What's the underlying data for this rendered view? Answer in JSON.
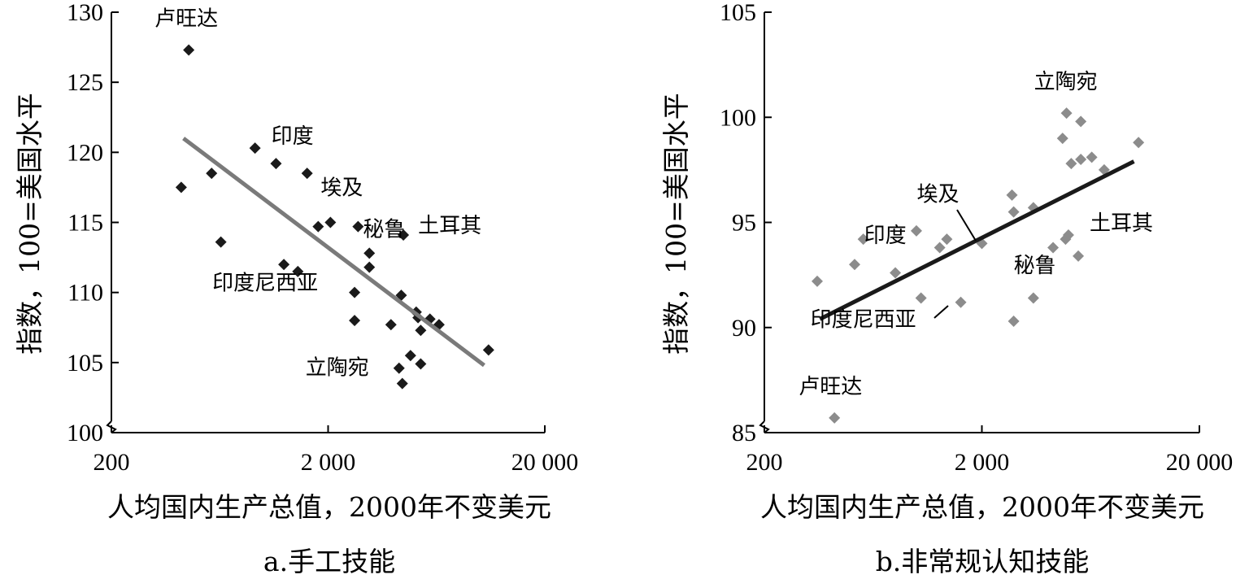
{
  "chart_data": [
    {
      "type": "scatter",
      "caption": "a.手工技能",
      "xlabel": "人均国内生产总值，2000年不变美元",
      "ylabel": "指数，100=美国水平",
      "x_scale": "log",
      "xlim": [
        200,
        20000
      ],
      "ylim": [
        100,
        130
      ],
      "x_ticks": [
        200,
        2000,
        20000
      ],
      "x_tick_labels": [
        "200",
        "2 000",
        "20 000"
      ],
      "y_ticks": [
        100,
        105,
        110,
        115,
        120,
        125,
        130
      ],
      "y_tick_labels": [
        "100",
        "105",
        "110",
        "115",
        "120",
        "125",
        "130"
      ],
      "axis_break": true,
      "point_color": "#1a1a1a",
      "trendline_color": "#7a7a7a",
      "points": [
        {
          "x": 455,
          "y": 127.3
        },
        {
          "x": 420,
          "y": 117.5
        },
        {
          "x": 580,
          "y": 118.5
        },
        {
          "x": 640,
          "y": 113.6
        },
        {
          "x": 920,
          "y": 120.3
        },
        {
          "x": 1150,
          "y": 119.2
        },
        {
          "x": 1250,
          "y": 112.0
        },
        {
          "x": 1450,
          "y": 111.5
        },
        {
          "x": 1600,
          "y": 118.5
        },
        {
          "x": 1800,
          "y": 114.7
        },
        {
          "x": 2050,
          "y": 115.0
        },
        {
          "x": 2650,
          "y": 110.0
        },
        {
          "x": 2650,
          "y": 108.0
        },
        {
          "x": 2750,
          "y": 114.7
        },
        {
          "x": 3100,
          "y": 112.8
        },
        {
          "x": 3100,
          "y": 111.8
        },
        {
          "x": 3900,
          "y": 107.7
        },
        {
          "x": 4450,
          "y": 114.1
        },
        {
          "x": 4350,
          "y": 109.8
        },
        {
          "x": 4250,
          "y": 104.6
        },
        {
          "x": 4400,
          "y": 103.5
        },
        {
          "x": 4800,
          "y": 105.5
        },
        {
          "x": 5100,
          "y": 108.6
        },
        {
          "x": 5200,
          "y": 108.2
        },
        {
          "x": 5350,
          "y": 107.3
        },
        {
          "x": 5350,
          "y": 104.9
        },
        {
          "x": 5900,
          "y": 108.1
        },
        {
          "x": 6500,
          "y": 107.7
        },
        {
          "x": 11000,
          "y": 105.9
        }
      ],
      "trendline": {
        "x": [
          430,
          10500
        ],
        "y": [
          121.0,
          104.8
        ]
      },
      "annotations": [
        {
          "text": "卢旺达",
          "x": 455,
          "y": 127.3,
          "dx": -42,
          "dy": -30
        },
        {
          "text": "印度",
          "x": 920,
          "y": 120.3,
          "dx": 20,
          "dy": -6
        },
        {
          "text": "埃及",
          "x": 2050,
          "y": 115.0,
          "dx": -12,
          "dy": -34
        },
        {
          "text": "秘鲁",
          "x": 2750,
          "y": 114.7,
          "dx": 6,
          "dy": 12
        },
        {
          "text": "土耳其",
          "x": 4450,
          "y": 114.1,
          "dx": 18,
          "dy": -3
        },
        {
          "text": "印度尼西亚",
          "x": 2650,
          "y": 110.0,
          "dx": -175,
          "dy": -3
        },
        {
          "text": "立陶宛",
          "x": 4250,
          "y": 104.6,
          "dx": -115,
          "dy": 8
        }
      ]
    },
    {
      "type": "scatter",
      "caption": "b.非常规认知技能",
      "xlabel": "人均国内生产总值，2000年不变美元",
      "ylabel": "指数，100=美国水平",
      "x_scale": "log",
      "xlim": [
        200,
        20000
      ],
      "ylim": [
        85,
        105
      ],
      "x_ticks": [
        200,
        2000,
        20000
      ],
      "x_tick_labels": [
        "200",
        "2 000",
        "20 000"
      ],
      "y_ticks": [
        85,
        90,
        95,
        100,
        105
      ],
      "y_tick_labels": [
        "85",
        "90",
        "95",
        "100",
        "105"
      ],
      "axis_break": true,
      "point_color": "#8c8c8c",
      "trendline_color": "#1a1a1a",
      "points": [
        {
          "x": 420,
          "y": 85.7
        },
        {
          "x": 350,
          "y": 92.2
        },
        {
          "x": 520,
          "y": 93.0
        },
        {
          "x": 570,
          "y": 94.2
        },
        {
          "x": 800,
          "y": 92.6
        },
        {
          "x": 1000,
          "y": 94.6
        },
        {
          "x": 1050,
          "y": 91.4
        },
        {
          "x": 1280,
          "y": 93.8
        },
        {
          "x": 1380,
          "y": 94.2
        },
        {
          "x": 1600,
          "y": 91.2
        },
        {
          "x": 2000,
          "y": 94.0
        },
        {
          "x": 2750,
          "y": 96.3
        },
        {
          "x": 2800,
          "y": 95.5
        },
        {
          "x": 2800,
          "y": 90.3
        },
        {
          "x": 3450,
          "y": 95.7
        },
        {
          "x": 3450,
          "y": 91.4
        },
        {
          "x": 4250,
          "y": 93.8
        },
        {
          "x": 4700,
          "y": 99.0
        },
        {
          "x": 4900,
          "y": 100.2
        },
        {
          "x": 4850,
          "y": 94.2
        },
        {
          "x": 5000,
          "y": 94.4
        },
        {
          "x": 5150,
          "y": 97.8
        },
        {
          "x": 5550,
          "y": 93.4
        },
        {
          "x": 5700,
          "y": 99.8
        },
        {
          "x": 5700,
          "y": 98.0
        },
        {
          "x": 6400,
          "y": 98.1
        },
        {
          "x": 7300,
          "y": 97.5
        },
        {
          "x": 10500,
          "y": 98.8
        }
      ],
      "trendline": {
        "x": [
          360,
          10000
        ],
        "y": [
          90.4,
          97.9
        ]
      },
      "annotations": [
        {
          "text": "立陶宛",
          "x": 4900,
          "y": 100.2,
          "dx": -40,
          "dy": -30
        },
        {
          "text": "埃及",
          "x": 2000,
          "y": 94.0,
          "dx": -80,
          "dy": -52
        },
        {
          "text": "印度",
          "x": 1050,
          "y": 94.6,
          "dx": -70,
          "dy": 14
        },
        {
          "text": "土耳其",
          "x": 5000,
          "y": 94.4,
          "dx": 26,
          "dy": -6
        },
        {
          "text": "秘鲁",
          "x": 2800,
          "y": 90.3,
          "dx": 0,
          "dy": -60
        },
        {
          "text": "印度尼西亚",
          "x": 1600,
          "y": 91.2,
          "dx": -185,
          "dy": 30
        },
        {
          "text": "卢旺达",
          "x": 420,
          "y": 85.7,
          "dx": -44,
          "dy": -30
        }
      ]
    }
  ]
}
